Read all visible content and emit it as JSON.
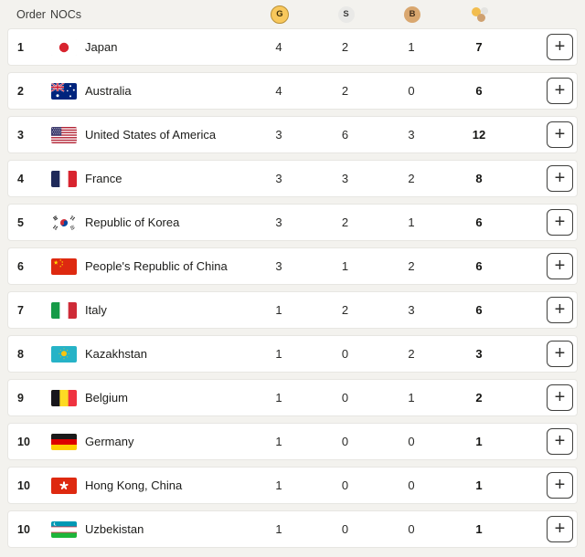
{
  "header": {
    "order_label": "Order",
    "nocs_label": "NOCs",
    "gold_letter": "G",
    "silver_letter": "S",
    "bronze_letter": "B"
  },
  "colors": {
    "gold": "#f8c85c",
    "gold_border": "#b88f35",
    "silver": "#e9e9e7",
    "bronze": "#d9a76f",
    "page_background": "#f3f2ee",
    "card_border": "#e7e6e2"
  },
  "expand_button_label": "+",
  "rows": [
    {
      "order": "1",
      "flag": "jp",
      "noc": "Japan",
      "gold": "4",
      "silver": "2",
      "bronze": "1",
      "total": "7"
    },
    {
      "order": "2",
      "flag": "au",
      "noc": "Australia",
      "gold": "4",
      "silver": "2",
      "bronze": "0",
      "total": "6"
    },
    {
      "order": "3",
      "flag": "us",
      "noc": "United States of America",
      "gold": "3",
      "silver": "6",
      "bronze": "3",
      "total": "12"
    },
    {
      "order": "4",
      "flag": "fr",
      "noc": "France",
      "gold": "3",
      "silver": "3",
      "bronze": "2",
      "total": "8"
    },
    {
      "order": "5",
      "flag": "kr",
      "noc": "Republic of Korea",
      "gold": "3",
      "silver": "2",
      "bronze": "1",
      "total": "6"
    },
    {
      "order": "6",
      "flag": "cn",
      "noc": "People's Republic of China",
      "gold": "3",
      "silver": "1",
      "bronze": "2",
      "total": "6"
    },
    {
      "order": "7",
      "flag": "it",
      "noc": "Italy",
      "gold": "1",
      "silver": "2",
      "bronze": "3",
      "total": "6"
    },
    {
      "order": "8",
      "flag": "kz",
      "noc": "Kazakhstan",
      "gold": "1",
      "silver": "0",
      "bronze": "2",
      "total": "3"
    },
    {
      "order": "9",
      "flag": "be",
      "noc": "Belgium",
      "gold": "1",
      "silver": "0",
      "bronze": "1",
      "total": "2"
    },
    {
      "order": "10",
      "flag": "de",
      "noc": "Germany",
      "gold": "1",
      "silver": "0",
      "bronze": "0",
      "total": "1"
    },
    {
      "order": "10",
      "flag": "hk",
      "noc": "Hong Kong, China",
      "gold": "1",
      "silver": "0",
      "bronze": "0",
      "total": "1"
    },
    {
      "order": "10",
      "flag": "uz",
      "noc": "Uzbekistan",
      "gold": "1",
      "silver": "0",
      "bronze": "0",
      "total": "1"
    }
  ]
}
